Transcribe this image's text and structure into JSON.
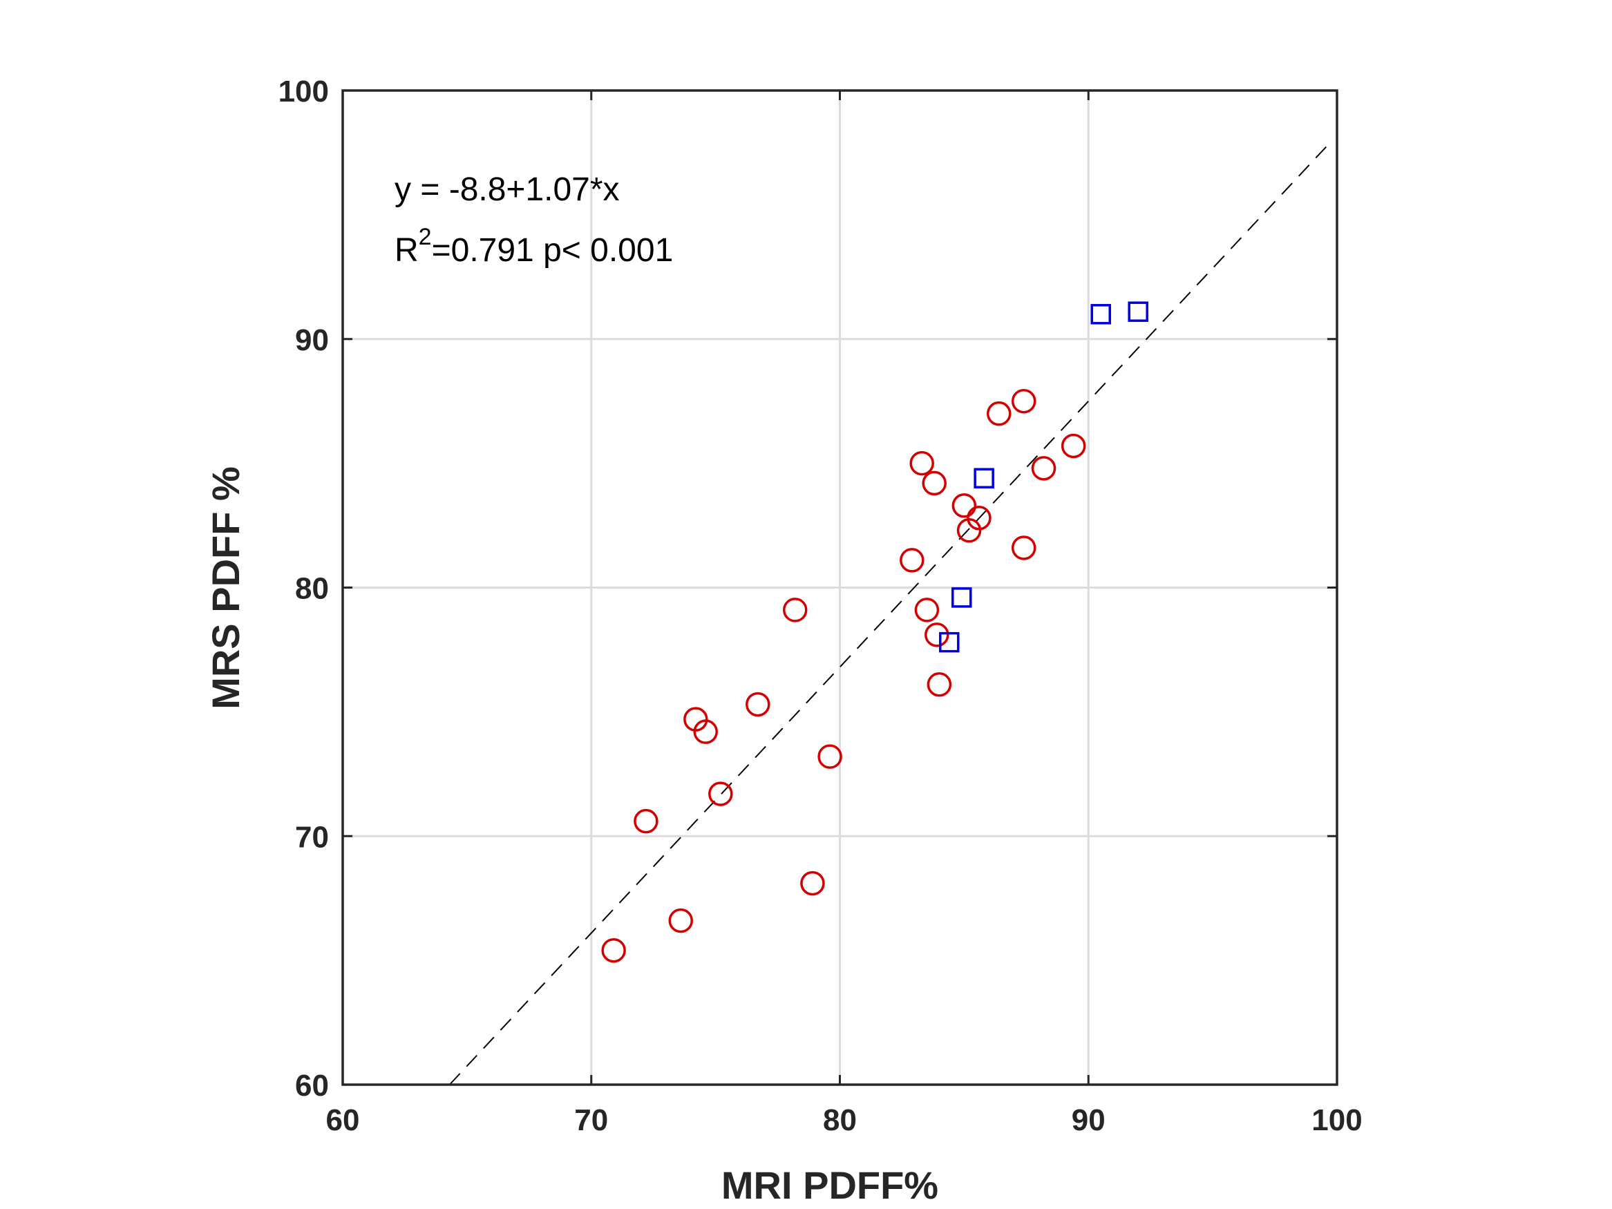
{
  "chart_data": {
    "type": "scatter",
    "xlabel": "MRI PDFF%",
    "ylabel": "MRS PDFF %",
    "xlim": [
      60,
      100
    ],
    "ylim": [
      60,
      100
    ],
    "xticks": [
      60,
      70,
      80,
      90,
      100
    ],
    "yticks": [
      60,
      70,
      80,
      90,
      100
    ],
    "grid": true,
    "annotation": {
      "equation": "y = -8.8+1.07*x",
      "r_prefix": "R",
      "r_superscript": "2",
      "r_rest": "=0.791 p< 0.001"
    },
    "fit_line": {
      "intercept": -8.8,
      "slope": 1.07,
      "style": "dashed"
    },
    "series": [
      {
        "marker": "circle",
        "color": "#d40000",
        "points": [
          [
            70.9,
            65.4
          ],
          [
            72.2,
            70.6
          ],
          [
            73.6,
            66.6
          ],
          [
            74.2,
            74.7
          ],
          [
            74.6,
            74.2
          ],
          [
            75.2,
            71.7
          ],
          [
            76.7,
            75.3
          ],
          [
            78.2,
            79.1
          ],
          [
            78.9,
            68.1
          ],
          [
            79.6,
            73.2
          ],
          [
            82.9,
            81.1
          ],
          [
            83.3,
            85.0
          ],
          [
            83.5,
            79.1
          ],
          [
            83.8,
            84.2
          ],
          [
            83.9,
            78.1
          ],
          [
            84.0,
            76.1
          ],
          [
            85.0,
            83.3
          ],
          [
            85.2,
            82.3
          ],
          [
            85.6,
            82.8
          ],
          [
            86.4,
            87.0
          ],
          [
            87.4,
            87.5
          ],
          [
            87.4,
            81.6
          ],
          [
            88.2,
            84.8
          ],
          [
            89.4,
            85.7
          ]
        ]
      },
      {
        "marker": "square",
        "color": "#0000e0",
        "points": [
          [
            84.4,
            77.8
          ],
          [
            84.9,
            79.6
          ],
          [
            85.8,
            84.4
          ],
          [
            90.5,
            91.0
          ],
          [
            92.0,
            91.1
          ]
        ]
      }
    ]
  }
}
